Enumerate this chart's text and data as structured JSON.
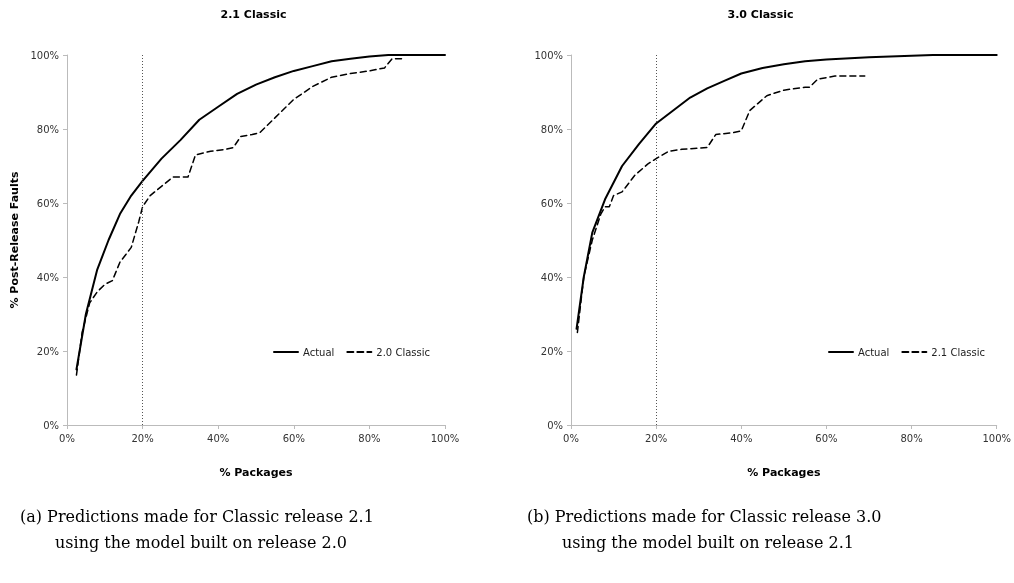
{
  "chart_data": [
    {
      "type": "line",
      "title": "2.1 Classic",
      "xlabel": "% Packages",
      "ylabel": "% Post-Release Faults",
      "xlim": [
        0,
        100
      ],
      "ylim": [
        0,
        100
      ],
      "xticks": [
        {
          "value": 0,
          "label": "0%"
        },
        {
          "value": 20,
          "label": "20%"
        },
        {
          "value": 40,
          "label": "40%"
        },
        {
          "value": 60,
          "label": "60%"
        },
        {
          "value": 80,
          "label": "80%"
        },
        {
          "value": 100,
          "label": "100%"
        }
      ],
      "yticks": [
        {
          "value": 0,
          "label": "0%"
        },
        {
          "value": 20,
          "label": "20%"
        },
        {
          "value": 40,
          "label": "40%"
        },
        {
          "value": 60,
          "label": "60%"
        },
        {
          "value": 80,
          "label": "80%"
        },
        {
          "value": 100,
          "label": "100%"
        }
      ],
      "grid": false,
      "legend": "bottom right",
      "marker": "none",
      "series": [
        {
          "name": "Actual",
          "color": "#000000",
          "line_style": "solid",
          "x": [
            2.5,
            5,
            8,
            11,
            14,
            17,
            20,
            25,
            30,
            35,
            40,
            45,
            50,
            55,
            60,
            65,
            70,
            75,
            80,
            85,
            100
          ],
          "values": [
            15,
            30,
            42,
            50,
            57,
            62,
            66,
            72,
            77,
            82.5,
            86,
            89.5,
            92,
            94,
            95.7,
            97,
            98.3,
            99,
            99.6,
            100,
            100
          ]
        },
        {
          "name": "2.0 Classic",
          "color": "#000000",
          "line_style": "dashed",
          "x": [
            2.5,
            4,
            6,
            8,
            10,
            12,
            14,
            17,
            19,
            20,
            22,
            25,
            28,
            30,
            32,
            34,
            38,
            42,
            44,
            46,
            49,
            51,
            55,
            60,
            65,
            70,
            75,
            80,
            84,
            86,
            89
          ],
          "values": [
            13.5,
            25,
            33,
            36,
            38,
            39,
            44,
            48,
            55,
            59,
            62,
            64.5,
            67,
            67,
            67,
            73,
            74,
            74.5,
            75,
            78,
            78.5,
            79,
            83,
            88,
            91.5,
            94,
            95,
            95.7,
            96.5,
            99,
            99
          ]
        }
      ],
      "ref_lines": [
        {
          "axis": "x",
          "value": 20,
          "color": "#555555",
          "line_style": "dotted"
        }
      ],
      "annotations": [
        "(a) Predictions made for Classic release 2.1",
        "using the model built on release 2.0"
      ]
    },
    {
      "type": "line",
      "title": "3.0 Classic",
      "xlabel": "% Packages",
      "xlim": [
        0,
        100
      ],
      "ylim": [
        0,
        100
      ],
      "xticks": [
        {
          "value": 0,
          "label": "0%"
        },
        {
          "value": 20,
          "label": "20%"
        },
        {
          "value": 40,
          "label": "40%"
        },
        {
          "value": 60,
          "label": "60%"
        },
        {
          "value": 80,
          "label": "80%"
        },
        {
          "value": 100,
          "label": "100%"
        }
      ],
      "yticks": [
        {
          "value": 0,
          "label": "0%"
        },
        {
          "value": 20,
          "label": "20%"
        },
        {
          "value": 40,
          "label": "40%"
        },
        {
          "value": 60,
          "label": "60%"
        },
        {
          "value": 80,
          "label": "80%"
        },
        {
          "value": 100,
          "label": "100%"
        }
      ],
      "grid": false,
      "legend": "bottom right",
      "marker": "none",
      "series": [
        {
          "name": "Actual",
          "color": "#000000",
          "line_style": "solid",
          "x": [
            1.3,
            3,
            5,
            8,
            12,
            16,
            20,
            24,
            28,
            32,
            36,
            40,
            45,
            50,
            55,
            60,
            70,
            80,
            85,
            100
          ],
          "values": [
            26,
            40,
            52,
            61,
            70,
            76,
            81.5,
            85,
            88.5,
            91,
            93,
            95,
            96.5,
            97.5,
            98.3,
            98.8,
            99.4,
            99.8,
            100,
            100
          ]
        },
        {
          "name": "2.1 Classic",
          "color": "#000000",
          "line_style": "dashed",
          "x": [
            1.5,
            3,
            5,
            7,
            8,
            9,
            10,
            12,
            15,
            18,
            20,
            23,
            26,
            32,
            34,
            38,
            40,
            42,
            46,
            50,
            55,
            56,
            58,
            62,
            69
          ],
          "values": [
            25,
            40,
            50,
            57,
            59,
            59,
            62,
            63,
            67.5,
            70.5,
            72,
            74,
            74.5,
            75,
            78.5,
            79,
            79.5,
            85,
            89,
            90.5,
            91.3,
            91.3,
            93.5,
            94.3,
            94.3
          ]
        }
      ],
      "ref_lines": [
        {
          "axis": "x",
          "value": 20,
          "color": "#555555",
          "line_style": "dotted"
        }
      ],
      "annotations": [
        "(b) Predictions made for Classic release 3.0",
        "using the model built on release 2.1"
      ]
    }
  ]
}
